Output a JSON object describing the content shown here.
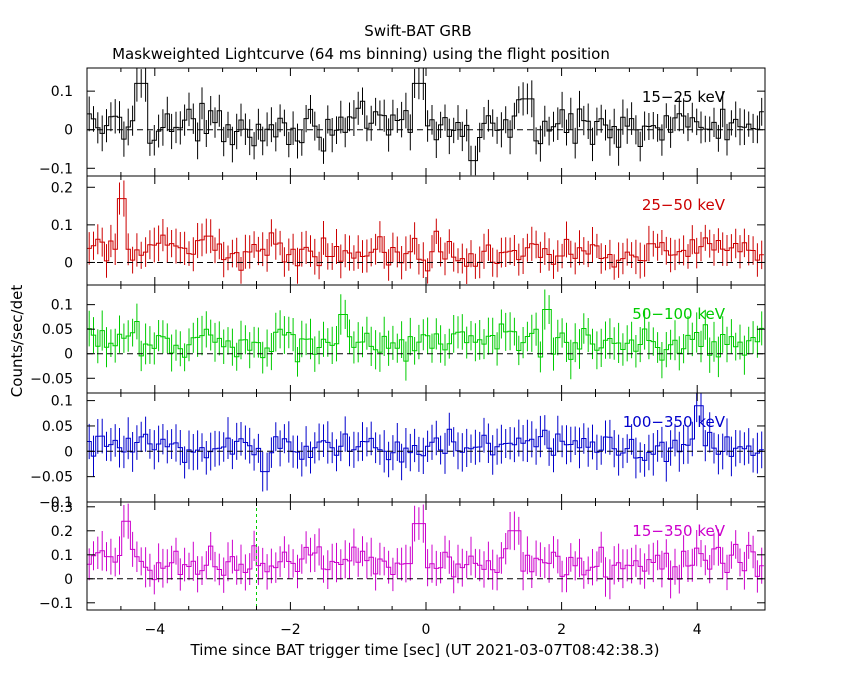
{
  "figure": {
    "title": "Swift-BAT GRB",
    "subtitle": "Maskweighted Lightcurve (64 ms binning) using the flight position",
    "xlabel": "Time since BAT trigger time [sec] (UT 2021-03-07T08:42:38.3)",
    "ylabel": "Counts/sec/det"
  },
  "chart_data": {
    "type": "line",
    "style": "step histogram with error bars",
    "bin_width_sec": 0.064,
    "xlim": [
      -5,
      5
    ],
    "xticks": [
      "−4",
      "−2",
      "0",
      "2",
      "4"
    ],
    "xtick_values": [
      -4,
      -2,
      0,
      2,
      4
    ],
    "marker_line": {
      "x": -2.5,
      "color": "#00cc00",
      "panel": "15-350 keV"
    },
    "panels": [
      {
        "name": "15−25 keV",
        "color": "#000000",
        "ylim": [
          -0.12,
          0.16
        ],
        "yticks": [
          "−0.1",
          "0",
          "0.1"
        ],
        "ytick_values": [
          -0.1,
          0,
          0.1
        ],
        "mean": 0.01,
        "noise": 0.035,
        "err": 0.04,
        "features": [
          {
            "x": -4.2,
            "y": 0.12
          },
          {
            "x": -0.1,
            "y": 0.12
          },
          {
            "x": 0.7,
            "y": -0.08
          },
          {
            "x": 1.5,
            "y": 0.08
          }
        ]
      },
      {
        "name": "25−50 keV",
        "color": "#cc0000",
        "ylim": [
          -0.06,
          0.23
        ],
        "yticks": [
          "0",
          "0.1",
          "0.2"
        ],
        "ytick_values": [
          0,
          0.1,
          0.2
        ],
        "mean": 0.03,
        "noise": 0.028,
        "err": 0.04,
        "features": [
          {
            "x": -4.5,
            "y": 0.17
          },
          {
            "x": -3.2,
            "y": 0.07
          }
        ]
      },
      {
        "name": "50−100 keV",
        "color": "#00cc00",
        "ylim": [
          -0.08,
          0.14
        ],
        "yticks": [
          "−0.05",
          "0",
          "0.05",
          "0.1"
        ],
        "ytick_values": [
          -0.05,
          0,
          0.05,
          0.1
        ],
        "mean": 0.025,
        "noise": 0.025,
        "err": 0.035,
        "features": [
          {
            "x": 1.8,
            "y": 0.09
          },
          {
            "x": -1.2,
            "y": 0.08
          }
        ]
      },
      {
        "name": "100−350 keV",
        "color": "#0000cc",
        "ylim": [
          -0.1,
          0.115
        ],
        "yticks": [
          "−0.1",
          "−0.05",
          "0",
          "0.05",
          "0.1"
        ],
        "ytick_values": [
          -0.1,
          -0.05,
          0,
          0.05,
          0.1
        ],
        "mean": 0.01,
        "noise": 0.022,
        "err": 0.035,
        "features": [
          {
            "x": 4.0,
            "y": 0.09
          },
          {
            "x": -2.4,
            "y": -0.04
          }
        ]
      },
      {
        "name": "15−350 keV",
        "color": "#cc00cc",
        "ylim": [
          -0.13,
          0.32
        ],
        "yticks": [
          "−0.1",
          "0",
          "0.1",
          "0.2",
          "0.3"
        ],
        "ytick_values": [
          -0.1,
          0,
          0.1,
          0.2,
          0.3
        ],
        "mean": 0.07,
        "noise": 0.05,
        "err": 0.07,
        "features": [
          {
            "x": -4.4,
            "y": 0.24
          },
          {
            "x": -0.1,
            "y": 0.23
          },
          {
            "x": 1.3,
            "y": 0.2
          }
        ]
      }
    ]
  }
}
